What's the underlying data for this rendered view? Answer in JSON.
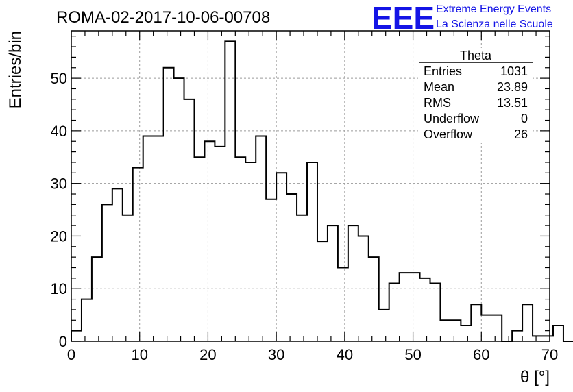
{
  "chart_data": {
    "type": "histogram",
    "title": "ROMA-02-2017-10-06-00708",
    "xlabel": "θ [°]",
    "ylabel": "Entries/bin",
    "xlim": [
      0,
      70
    ],
    "ylim": [
      0,
      59
    ],
    "x_ticks": [
      0,
      10,
      20,
      30,
      40,
      50,
      60,
      70
    ],
    "y_ticks": [
      0,
      10,
      20,
      30,
      40,
      50
    ],
    "grid": true,
    "bin_width": 1.5,
    "bin_start": 0,
    "values": [
      2,
      8,
      16,
      26,
      29,
      24,
      33,
      39,
      39,
      52,
      50,
      46,
      35,
      38,
      37,
      57,
      35,
      34,
      39,
      27,
      32,
      28,
      24,
      34,
      19,
      22,
      14,
      22,
      20,
      16,
      6,
      11,
      13,
      13,
      12,
      11,
      4,
      4,
      3,
      7,
      5,
      5,
      0,
      2,
      7,
      1,
      1,
      3,
      0
    ],
    "stats_box": {
      "name": "Theta",
      "rows": [
        {
          "label": "Entries",
          "value": "1031"
        },
        {
          "label": "Mean",
          "value": "23.89"
        },
        {
          "label": "RMS",
          "value": "13.51"
        },
        {
          "label": "Underflow",
          "value": "0"
        },
        {
          "label": "Overflow",
          "value": "26"
        }
      ]
    }
  },
  "logo": {
    "text": "EEE",
    "line1": "Extreme Energy Events",
    "line2": "La Scienza nelle Scuole",
    "color": "#1414e6"
  }
}
